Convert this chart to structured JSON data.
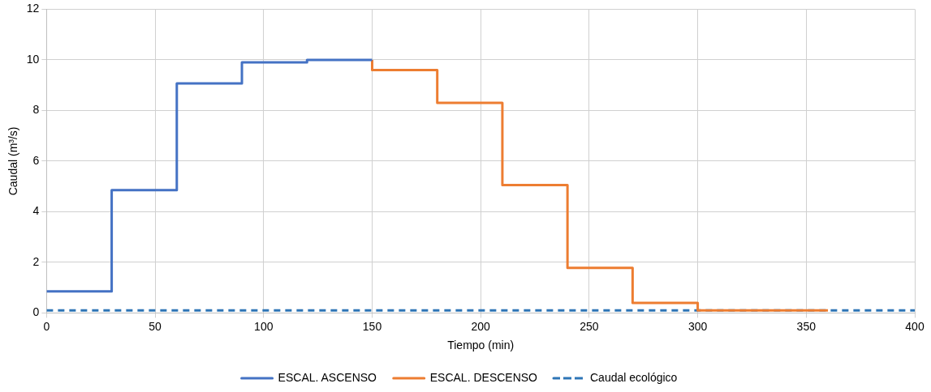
{
  "chart_data": {
    "type": "step",
    "xlabel": "Tiempo (min)",
    "ylabel": "Caudal (m³/s)",
    "xlim": [
      0,
      400
    ],
    "xticks": [
      0,
      50,
      100,
      150,
      200,
      250,
      300,
      350,
      400
    ],
    "ylim": [
      0,
      12
    ],
    "yticks": [
      0,
      2,
      4,
      6,
      8,
      10,
      12
    ],
    "grid": true,
    "legend": "bottom",
    "marker": "none",
    "series": [
      {
        "name": "ESCAL. ASCENSO",
        "color": "#4472c4",
        "x": [
          0,
          30,
          60,
          90,
          120,
          150
        ],
        "values": [
          0.85,
          4.85,
          9.07,
          9.9,
          10,
          10
        ]
      },
      {
        "name": "ESCAL. DESCENSO",
        "color": "#ed7d31",
        "x": [
          150,
          150,
          180,
          210,
          240,
          270,
          300,
          360
        ],
        "values": [
          10,
          9.6,
          8.3,
          5.05,
          1.78,
          0.4,
          0.1,
          0.1
        ]
      },
      {
        "name": "Caudal ecológico",
        "type": "line",
        "line_style": "dashed",
        "color": "#2e75b6",
        "x": [
          0,
          400
        ],
        "values": [
          0.1,
          0.1
        ]
      }
    ]
  }
}
